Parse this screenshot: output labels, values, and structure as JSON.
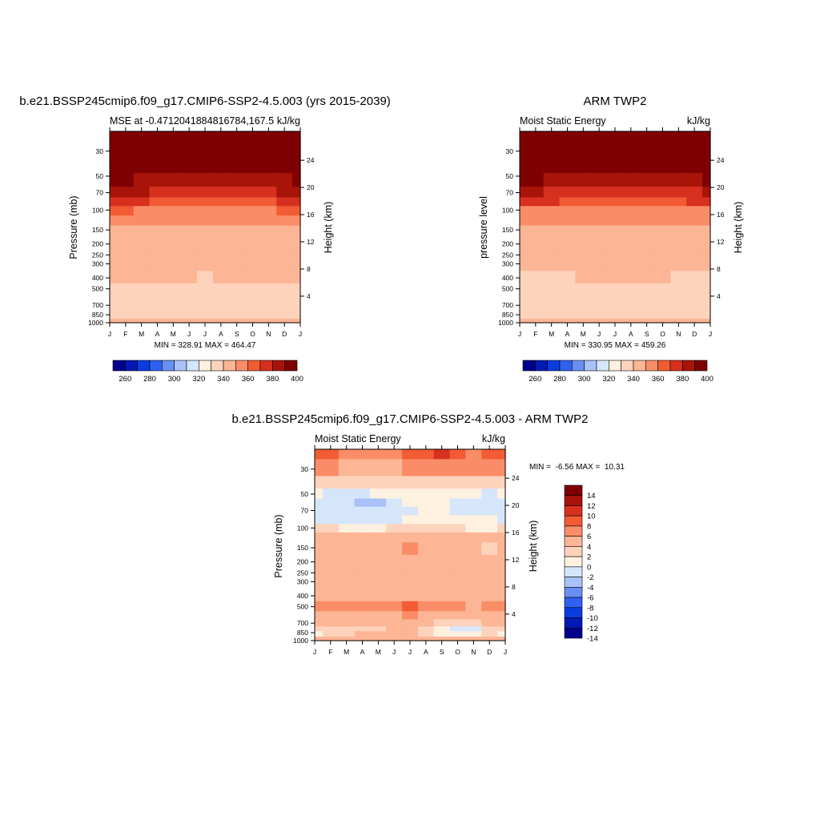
{
  "figure": {
    "page_colors": {
      "background": "#ffffff",
      "axis": "#000000"
    }
  },
  "levels_full": [
    260,
    270,
    280,
    290,
    300,
    310,
    320,
    330,
    340,
    350,
    360,
    370,
    380,
    390,
    400
  ],
  "levels_full_ticks": [
    "260",
    "280",
    "300",
    "320",
    "340",
    "360",
    "380",
    "400"
  ],
  "colors_full": [
    "#00008c",
    "#0219b4",
    "#0c3ce0",
    "#2f61f0",
    "#6a8ff4",
    "#a9c2f8",
    "#d6e6fa",
    "#fff1e0",
    "#fdd3bc",
    "#fcb595",
    "#fa8d68",
    "#f25b34",
    "#d7301f",
    "#a81409",
    "#7f0000"
  ],
  "levels_diff": [
    -14,
    -12,
    -10,
    -8,
    -6,
    -4,
    -2,
    0,
    2,
    4,
    6,
    8,
    10,
    12,
    14
  ],
  "levels_diff_ticks": [
    "14",
    "12",
    "10",
    "8",
    "6",
    "4",
    "2",
    "0",
    "-2",
    "-4",
    "-6",
    "-8",
    "-10",
    "-12",
    "-14"
  ],
  "colors_diff": [
    "#00008c",
    "#0219b4",
    "#0c3ce0",
    "#2f61f0",
    "#6a8ff4",
    "#a9c2f8",
    "#d6e6fa",
    "#fff1e0",
    "#fdd3bc",
    "#fcb595",
    "#fa8d68",
    "#f25b34",
    "#d7301f",
    "#a81409",
    "#7f0000"
  ],
  "panels": {
    "top_left": {
      "main_title": "b.e21.BSSP245cmip6.f09_g17.CMIP6-SSP2-4.5.003 (yrs 2015-2039)",
      "left_title": "MSE at -0.4712041884816784,167.5",
      "right_title": "kJ/kg",
      "ylabel": "Pressure (mb)",
      "ylabel_right": "Height (km)",
      "minmax": "MIN = 328.91 MAX = 464.47"
    },
    "top_right": {
      "main_title": "ARM TWP2",
      "left_title": "Moist Static Energy",
      "right_title": "kJ/kg",
      "ylabel": "pressure level",
      "ylabel_right": "Height (km)",
      "minmax": "MIN = 330.95 MAX = 459.26"
    },
    "bottom": {
      "main_title": "b.e21.BSSP245cmip6.f09_g17.CMIP6-SSP2-4.5.003 - ARM TWP2",
      "left_title": "Moist Static Energy",
      "right_title": "kJ/kg",
      "ylabel": "Pressure (mb)",
      "ylabel_right": "Height (km)",
      "minmax": "MIN =  -6.56 MAX =  10.31"
    }
  },
  "chart_data": [
    {
      "type": "heatmap",
      "title": "b.e21.BSSP245cmip6.f09_g17.CMIP6-SSP2-4.5.003 (yrs 2015-2039)",
      "subtitle": "MSE at -0.4712041884816784,167.5",
      "units": "kJ/kg",
      "xlabel": "",
      "ylabel": "Pressure (mb)",
      "ylabel_right": "Height (km)",
      "x_ticks": [
        "J",
        "F",
        "M",
        "A",
        "M",
        "J",
        "J",
        "A",
        "S",
        "O",
        "N",
        "D",
        "J"
      ],
      "y_ticks": [
        30,
        50,
        70,
        100,
        150,
        200,
        250,
        300,
        400,
        500,
        700,
        850,
        1000
      ],
      "y_range": [
        1000,
        20
      ],
      "y_scale": "log",
      "y_right_ticks": [
        4,
        8,
        12,
        16,
        20,
        24
      ],
      "months": [
        "J",
        "F",
        "M",
        "A",
        "M",
        "J",
        "J",
        "A",
        "S",
        "O",
        "N",
        "D",
        "J"
      ],
      "pressure_levels": [
        20,
        40,
        55,
        70,
        85,
        100,
        125,
        150,
        200,
        300,
        400,
        500,
        700,
        850,
        1000
      ],
      "values": [
        [
          464,
          464,
          464,
          464,
          464,
          464,
          464,
          464,
          464,
          464,
          464,
          464,
          464
        ],
        [
          420,
          419,
          418,
          417,
          416,
          415,
          414,
          414,
          415,
          416,
          417,
          418,
          420
        ],
        [
          392,
          391,
          389,
          387,
          385,
          383,
          382,
          382,
          383,
          385,
          387,
          389,
          392
        ],
        [
          382,
          381,
          380,
          378,
          376,
          374,
          373,
          373,
          374,
          376,
          378,
          380,
          382
        ],
        [
          372,
          371,
          370,
          369,
          368,
          366,
          365,
          365,
          366,
          368,
          369,
          371,
          372
        ],
        [
          360,
          360,
          359,
          358,
          358,
          357,
          356,
          356,
          357,
          358,
          359,
          360,
          360
        ],
        [
          352,
          352,
          352,
          351,
          351,
          350,
          350,
          350,
          350,
          351,
          351,
          352,
          352
        ],
        [
          346,
          346,
          346,
          346,
          346,
          346,
          346,
          346,
          346,
          346,
          346,
          346,
          346
        ],
        [
          344,
          344,
          344,
          344,
          344,
          344,
          344,
          344,
          344,
          344,
          344,
          344,
          344
        ],
        [
          343,
          343,
          343,
          343,
          343,
          343,
          343,
          343,
          343,
          343,
          343,
          343,
          343
        ],
        [
          341,
          341,
          341,
          340,
          341,
          340,
          339,
          340,
          341,
          341,
          341,
          341,
          341
        ],
        [
          336,
          336,
          336,
          336,
          336,
          336,
          336,
          336,
          336,
          336,
          336,
          336,
          336
        ],
        [
          334,
          334,
          334,
          334,
          334,
          334,
          334,
          334,
          332,
          332,
          334,
          334,
          334
        ],
        [
          337,
          337,
          337,
          337,
          337,
          337,
          337,
          337,
          337,
          337,
          337,
          337,
          337
        ],
        [
          342,
          342,
          342,
          342,
          342,
          342,
          342,
          342,
          342,
          342,
          342,
          342,
          342
        ]
      ],
      "levels": [
        260,
        270,
        280,
        290,
        300,
        310,
        320,
        330,
        340,
        350,
        360,
        370,
        380,
        390,
        400
      ],
      "annotations": [
        "MIN = 328.91 MAX = 464.47"
      ]
    },
    {
      "type": "heatmap",
      "title": "ARM TWP2",
      "subtitle": "Moist Static Energy",
      "units": "kJ/kg",
      "xlabel": "",
      "ylabel": "pressure level",
      "ylabel_right": "Height (km)",
      "x_ticks": [
        "J",
        "F",
        "M",
        "A",
        "M",
        "J",
        "J",
        "A",
        "S",
        "O",
        "N",
        "D",
        "J"
      ],
      "y_ticks": [
        30,
        50,
        70,
        100,
        150,
        200,
        250,
        300,
        400,
        500,
        700,
        850,
        1000
      ],
      "y_range": [
        1000,
        20
      ],
      "y_scale": "log",
      "y_right_ticks": [
        4,
        8,
        12,
        16,
        20,
        24
      ],
      "months": [
        "J",
        "F",
        "M",
        "A",
        "M",
        "J",
        "J",
        "A",
        "S",
        "O",
        "N",
        "D",
        "J"
      ],
      "pressure_levels": [
        20,
        40,
        55,
        70,
        85,
        100,
        125,
        150,
        200,
        300,
        400,
        500,
        700,
        850,
        1000
      ],
      "values": [
        [
          459,
          459,
          459,
          459,
          459,
          459,
          459,
          459,
          459,
          459,
          459,
          459,
          459
        ],
        [
          418,
          417,
          416,
          415,
          414,
          413,
          412,
          412,
          413,
          414,
          415,
          416,
          418
        ],
        [
          391,
          390,
          389,
          387,
          385,
          383,
          381,
          381,
          382,
          384,
          386,
          389,
          391
        ],
        [
          381,
          380,
          379,
          378,
          376,
          374,
          372,
          372,
          373,
          375,
          377,
          379,
          381
        ],
        [
          372,
          371,
          370,
          369,
          368,
          366,
          365,
          365,
          366,
          367,
          369,
          371,
          372
        ],
        [
          358,
          358,
          358,
          358,
          357,
          357,
          356,
          357,
          357,
          358,
          358,
          358,
          358
        ],
        [
          350,
          350,
          350,
          350,
          350,
          350,
          350,
          350,
          350,
          350,
          350,
          350,
          350
        ],
        [
          346,
          346,
          346,
          346,
          346,
          346,
          346,
          346,
          346,
          346,
          346,
          346,
          346
        ],
        [
          344,
          344,
          344,
          344,
          344,
          344,
          344,
          344,
          344,
          344,
          344,
          344,
          344
        ],
        [
          342,
          342,
          342,
          342,
          342,
          342,
          343,
          343,
          343,
          342,
          342,
          342,
          342
        ],
        [
          339,
          339,
          339,
          339,
          340,
          340,
          340,
          340,
          341,
          340,
          339,
          339,
          339
        ],
        [
          336,
          336,
          336,
          336,
          336,
          336,
          336,
          336,
          336,
          336,
          336,
          336,
          336
        ],
        [
          334,
          334,
          334,
          334,
          334,
          334,
          334,
          334,
          334,
          334,
          334,
          334,
          334
        ],
        [
          335,
          335,
          335,
          335,
          335,
          335,
          335,
          335,
          335,
          335,
          335,
          335,
          335
        ],
        [
          341,
          341,
          341,
          341,
          341,
          341,
          341,
          341,
          341,
          341,
          341,
          341,
          341
        ]
      ],
      "levels": [
        260,
        270,
        280,
        290,
        300,
        310,
        320,
        330,
        340,
        350,
        360,
        370,
        380,
        390,
        400
      ],
      "annotations": [
        "MIN = 330.95 MAX = 459.26"
      ]
    },
    {
      "type": "heatmap",
      "title": "b.e21.BSSP245cmip6.f09_g17.CMIP6-SSP2-4.5.003 - ARM TWP2",
      "subtitle": "Moist Static Energy",
      "units": "kJ/kg",
      "xlabel": "",
      "ylabel": "Pressure (mb)",
      "ylabel_right": "Height (km)",
      "x_ticks": [
        "J",
        "F",
        "M",
        "A",
        "M",
        "J",
        "J",
        "A",
        "S",
        "O",
        "N",
        "D",
        "J"
      ],
      "y_ticks": [
        30,
        50,
        70,
        100,
        150,
        200,
        250,
        300,
        400,
        500,
        700,
        850,
        1000
      ],
      "y_range": [
        1000,
        20
      ],
      "y_scale": "log",
      "y_right_ticks": [
        4,
        8,
        12,
        16,
        20,
        24
      ],
      "months": [
        "J",
        "F",
        "M",
        "A",
        "M",
        "J",
        "J",
        "A",
        "S",
        "O",
        "N",
        "D",
        "J"
      ],
      "pressure_levels": [
        20,
        30,
        40,
        50,
        60,
        70,
        85,
        100,
        120,
        150,
        200,
        300,
        400,
        500,
        600,
        700,
        800,
        850,
        1000
      ],
      "values": [
        [
          6,
          6,
          5,
          5,
          5,
          5,
          6,
          6,
          8,
          6,
          5,
          6,
          6
        ],
        [
          4,
          4,
          3,
          3,
          3,
          3,
          4,
          5,
          5,
          4,
          4,
          4,
          4
        ],
        [
          1,
          1,
          0,
          1,
          1,
          1,
          1,
          1,
          1,
          1,
          1,
          1,
          1
        ],
        [
          -1,
          -3,
          -3,
          -3,
          -2,
          -1,
          -1,
          -1,
          -1,
          -1,
          -2,
          -3,
          -1
        ],
        [
          -3,
          -3,
          -4,
          -6,
          -5,
          -3,
          -2,
          -2,
          -1,
          -3,
          -3,
          -3,
          -3
        ],
        [
          -4,
          -4,
          -4,
          -4,
          -4,
          -3,
          -3,
          -2,
          -2,
          -3,
          -3,
          -3,
          -4
        ],
        [
          -3,
          -3,
          -3,
          -3,
          -3,
          -3,
          -2,
          -2,
          -2,
          -2,
          -2,
          -2,
          -3
        ],
        [
          0,
          0,
          -1,
          -1,
          -1,
          0,
          0,
          0,
          0,
          0,
          -1,
          -1,
          0
        ],
        [
          2,
          2,
          2,
          2,
          2,
          2,
          2,
          2,
          2,
          2,
          2,
          2,
          2
        ],
        [
          3,
          3,
          3,
          3,
          3,
          3,
          4,
          3,
          3,
          3,
          3,
          1,
          3
        ],
        [
          3,
          3,
          3,
          3,
          3,
          3,
          3,
          3,
          3,
          3,
          3,
          2,
          3
        ],
        [
          3,
          3,
          3,
          3,
          3,
          3,
          3,
          3,
          3,
          3,
          3,
          2,
          3
        ],
        [
          3,
          3,
          3,
          3,
          3,
          3,
          3,
          3,
          3,
          3,
          2,
          2,
          3
        ],
        [
          4,
          4,
          4,
          4,
          4,
          5,
          6,
          5,
          4,
          4,
          3,
          4,
          4
        ],
        [
          3,
          3,
          3,
          3,
          3,
          3,
          4,
          3,
          3,
          3,
          3,
          3,
          3
        ],
        [
          2,
          2,
          2,
          2,
          2,
          2,
          2,
          2,
          1,
          0,
          1,
          2,
          2
        ],
        [
          0,
          0,
          0,
          1,
          1,
          2,
          2,
          1,
          -2,
          -3,
          -3,
          0,
          0
        ],
        [
          -1,
          1,
          1,
          2,
          2,
          2,
          2,
          1,
          -2,
          -2,
          -2,
          1,
          -1
        ],
        [
          3,
          3,
          3,
          3,
          3,
          3,
          3,
          3,
          3,
          3,
          3,
          3,
          3
        ]
      ],
      "levels": [
        -14,
        -12,
        -10,
        -8,
        -6,
        -4,
        -2,
        0,
        2,
        4,
        6,
        8,
        10,
        12,
        14
      ],
      "annotations": [
        "MIN =  -6.56 MAX =  10.31"
      ]
    }
  ]
}
